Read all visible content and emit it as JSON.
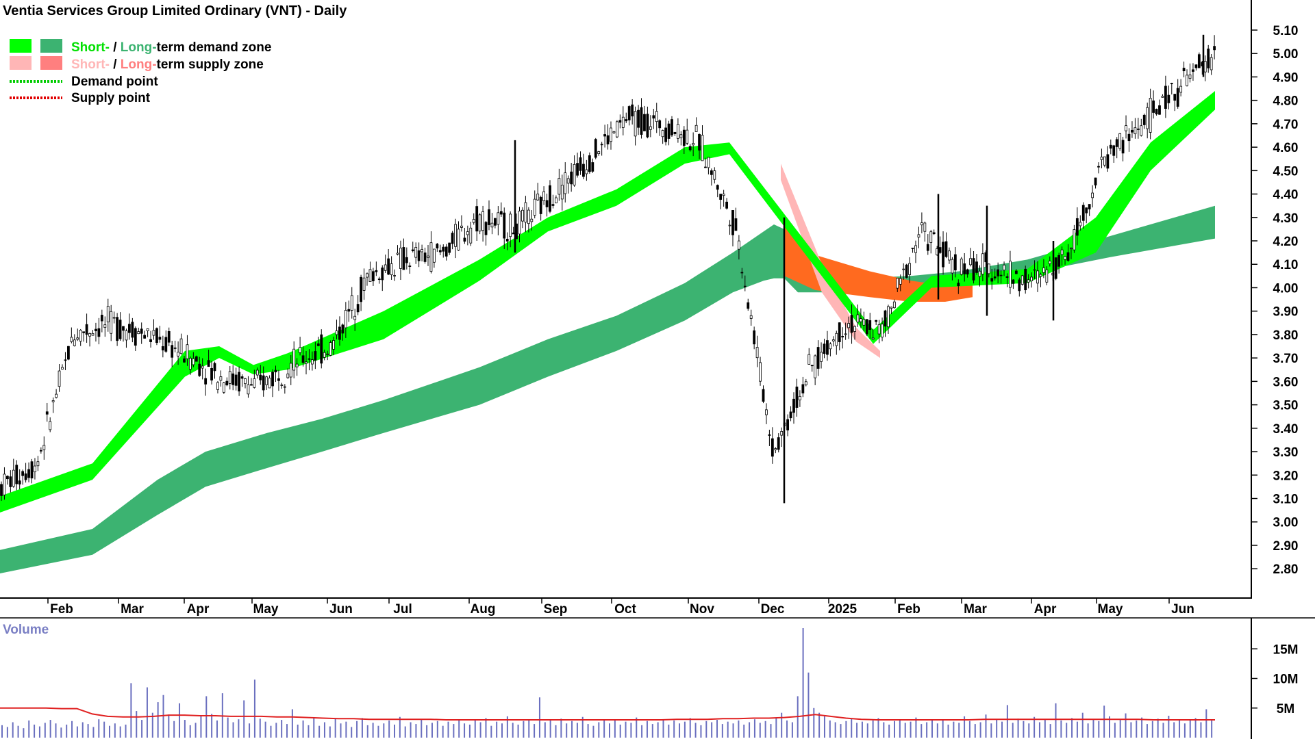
{
  "chart_data": {
    "type": "candlestick",
    "title": "Ventia Services Group Limited Ordinary (VNT) - Daily",
    "legend": [
      {
        "short_label": "Short-",
        "sep": " / ",
        "long_label": "Long-",
        "suffix": "term demand zone",
        "short_color": "#00ff00",
        "long_color": "#3cb371"
      },
      {
        "short_label": "Short-",
        "sep": " / ",
        "long_label": "Long-",
        "suffix": "term supply zone",
        "short_color": "#ffb6b6",
        "long_color": "#ff7f7f"
      },
      {
        "label": "Demand point",
        "color": "#00cc00",
        "style": "dotted"
      },
      {
        "label": "Supply point",
        "color": "#e00000",
        "style": "dotted"
      }
    ],
    "x_ticks": [
      "Feb",
      "Mar",
      "Apr",
      "May",
      "Jun",
      "Jul",
      "Aug",
      "Sep",
      "Oct",
      "Nov",
      "Dec",
      "2025",
      "Feb",
      "Mar",
      "Apr",
      "May",
      "Jun"
    ],
    "y_ticks": [
      "5.10",
      "5.00",
      "4.90",
      "4.80",
      "4.70",
      "4.60",
      "4.50",
      "4.40",
      "4.30",
      "4.20",
      "4.10",
      "4.00",
      "3.90",
      "3.80",
      "3.70",
      "3.60",
      "3.50",
      "3.40",
      "3.30",
      "3.20",
      "3.10",
      "3.00",
      "2.90",
      "2.80"
    ],
    "ylim": [
      2.71,
      5.17
    ],
    "price_path": [
      [
        "Feb",
        3.15
      ],
      [
        "Feb",
        3.25
      ],
      [
        "Mar",
        3.8
      ],
      [
        "Mar",
        3.85
      ],
      [
        "Apr",
        3.8
      ],
      [
        "Apr",
        3.72
      ],
      [
        "May",
        3.62
      ],
      [
        "May",
        3.58
      ],
      [
        "Jun",
        3.68
      ],
      [
        "Jun",
        3.75
      ],
      [
        "Jul",
        4.05
      ],
      [
        "Jul",
        4.12
      ],
      [
        "Aug",
        4.15
      ],
      [
        "Aug",
        4.3
      ],
      [
        "Sep",
        4.25
      ],
      [
        "Sep",
        4.4
      ],
      [
        "Oct",
        4.55
      ],
      [
        "Oct",
        4.72
      ],
      [
        "Nov",
        4.7
      ],
      [
        "Nov",
        4.62
      ],
      [
        "Dec",
        4.25
      ],
      [
        "Dec",
        3.3
      ],
      [
        "2025",
        3.65
      ],
      [
        "2025",
        3.85
      ],
      [
        "Feb",
        3.82
      ],
      [
        "Feb",
        4.25
      ],
      [
        "Mar",
        4.08
      ],
      [
        "Mar",
        4.08
      ],
      [
        "Apr",
        4.02
      ],
      [
        "Apr",
        4.15
      ],
      [
        "May",
        4.55
      ],
      [
        "May",
        4.7
      ],
      [
        "Jun",
        4.85
      ],
      [
        "Jun",
        5.0
      ]
    ],
    "bands": [
      {
        "name": "Long-term demand zone",
        "color": "#3cb371",
        "upper": [
          2.88,
          2.97,
          3.18,
          3.3,
          3.38,
          3.44,
          3.52,
          3.66,
          3.78,
          3.88,
          4.02,
          4.15,
          4.24,
          4.27,
          4.25,
          4.04,
          4.04,
          4.04,
          4.05,
          4.07,
          4.12,
          4.22,
          4.35
        ],
        "lower": [
          2.78,
          2.86,
          3.03,
          3.15,
          3.23,
          3.3,
          3.38,
          3.5,
          3.62,
          3.73,
          3.86,
          3.98,
          4.03,
          4.04,
          4.04,
          3.98,
          3.98,
          3.98,
          4.0,
          4.01,
          4.06,
          4.13,
          4.21
        ]
      },
      {
        "name": "Long-term supply zone",
        "color": "#ff6a1f",
        "upper": [
          4.27,
          4.14,
          4.07,
          4.03,
          4.01,
          4.02
        ],
        "lower": [
          4.05,
          3.99,
          3.96,
          3.94,
          3.94,
          3.96
        ]
      },
      {
        "name": "Short-term supply zone",
        "color": "#ffb6b6",
        "upper": [
          4.53,
          4.1,
          3.83,
          3.73
        ],
        "lower": [
          4.46,
          3.98,
          3.77,
          3.7
        ]
      },
      {
        "name": "Short-term demand zone",
        "color": "#00ff00",
        "upper": [
          3.11,
          3.25,
          3.73,
          3.75,
          3.67,
          3.72,
          3.9,
          4.12,
          4.3,
          4.42,
          4.6,
          4.62,
          3.82,
          4.05,
          4.08,
          4.3,
          4.62,
          4.84
        ],
        "lower": [
          3.04,
          3.18,
          3.62,
          3.7,
          3.63,
          3.65,
          3.78,
          4.03,
          4.24,
          4.35,
          4.53,
          4.57,
          3.76,
          4.0,
          4.02,
          4.15,
          4.5,
          4.76
        ]
      }
    ],
    "volume": {
      "title": "Volume",
      "y_ticks": [
        "15M",
        "10M",
        "5M"
      ],
      "ylim": [
        0,
        20
      ],
      "units": "M",
      "bars": [
        2.1,
        1.8,
        2.6,
        2.0,
        1.6,
        2.9,
        2.2,
        1.9,
        2.5,
        3.0,
        2.4,
        1.7,
        2.2,
        2.8,
        1.9,
        2.6,
        2.3,
        1.8,
        3.1,
        2.7,
        2.0,
        2.4,
        1.9,
        2.2,
        9.2,
        4.5,
        3.0,
        8.5,
        4.2,
        6.0,
        7.2,
        3.9,
        2.8,
        5.8,
        3.0,
        2.1,
        2.5,
        3.8,
        7.0,
        4.0,
        2.9,
        7.5,
        3.4,
        2.6,
        3.1,
        6.3,
        2.4,
        9.8,
        3.2,
        2.7,
        2.0,
        2.5,
        3.0,
        2.3,
        4.8,
        2.2,
        2.9,
        2.1,
        3.4,
        2.0,
        2.6,
        1.9,
        3.2,
        2.4,
        2.7,
        1.8,
        2.8,
        3.3,
        2.1,
        2.5,
        2.0,
        2.4,
        2.9,
        2.2,
        3.5,
        1.9,
        2.6,
        2.3,
        3.0,
        2.1,
        2.5,
        2.8,
        2.0,
        2.7,
        2.3,
        3.1,
        2.4,
        2.2,
        2.9,
        2.6,
        3.3,
        2.0,
        2.7,
        2.4,
        3.6,
        2.5,
        2.2,
        2.8,
        3.0,
        2.3,
        6.8,
        2.6,
        2.9,
        2.1,
        3.2,
        2.4,
        2.8,
        2.5,
        3.5,
        2.3,
        2.0,
        2.6,
        3.1,
        2.4,
        2.9,
        2.2,
        2.7,
        2.5,
        3.4,
        2.1,
        2.8,
        2.3,
        2.6,
        3.0,
        2.2,
        2.9,
        2.4,
        2.7,
        3.3,
        2.5,
        2.1,
        2.8,
        2.6,
        3.0,
        2.3,
        2.7,
        2.4,
        2.9,
        2.2,
        2.6,
        3.1,
        2.5,
        2.8,
        2.3,
        3.4,
        4.2,
        2.9,
        2.6,
        7.0,
        18.5,
        11.0,
        5.0,
        4.2,
        3.6,
        2.9,
        2.6,
        2.3,
        2.8,
        3.2,
        2.5,
        2.7,
        2.4,
        2.9,
        3.3,
        2.6,
        2.2,
        2.8,
        3.0,
        2.5,
        2.7,
        3.4,
        2.3,
        2.6,
        2.9,
        2.4,
        3.1,
        2.2,
        2.7,
        2.5,
        3.6,
        2.8,
        2.3,
        2.6,
        3.9,
        2.4,
        3.0,
        2.7,
        5.5,
        2.5,
        3.2,
        2.8,
        2.4,
        3.5,
        2.6,
        3.0,
        2.3,
        5.8,
        2.9,
        2.5,
        3.3,
        2.7,
        4.2,
        2.4,
        3.1,
        2.8,
        5.4,
        3.6,
        2.5,
        3.0,
        4.1,
        2.6,
        2.9,
        3.4,
        2.3,
        2.8,
        3.2,
        2.5,
        3.7,
        2.6,
        3.0,
        2.4,
        2.9,
        3.3,
        2.6,
        4.8,
        3.1
      ],
      "avg": [
        5.0,
        5.0,
        5.0,
        5.0,
        4.9,
        4.9,
        4.0,
        3.6,
        3.5,
        3.5,
        3.6,
        3.8,
        3.8,
        3.7,
        3.7,
        3.6,
        3.6,
        3.6,
        3.5,
        3.5,
        3.4,
        3.3,
        3.2,
        3.2,
        3.1,
        3.1,
        3.1,
        3.1,
        3.1,
        3.0,
        3.0,
        3.0,
        3.0,
        3.0,
        3.0,
        3.0,
        3.0,
        3.0,
        3.0,
        3.0,
        3.0,
        3.0,
        3.0,
        3.0,
        3.1,
        3.1,
        3.1,
        3.2,
        3.2,
        3.3,
        3.3,
        3.4,
        3.6,
        3.9,
        3.6,
        3.3,
        3.1,
        3.0,
        3.0,
        3.0,
        3.0,
        3.0,
        3.0,
        3.0,
        3.1,
        3.1,
        3.1,
        3.1,
        3.1,
        3.1,
        3.1,
        3.1,
        3.1,
        3.1,
        3.1,
        3.0,
        3.0,
        3.0,
        3.0,
        3.0
      ]
    }
  }
}
